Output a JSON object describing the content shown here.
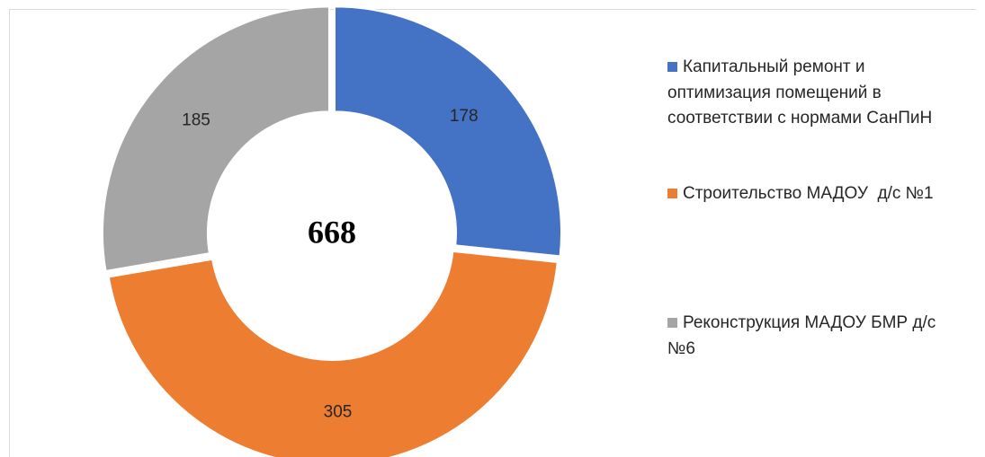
{
  "chart_data": {
    "type": "donut",
    "categories": [
      "Капитальный ремонт и оптимизация помещений в соответствии с нормами СанПиН",
      "Строительство МАДОУ  д/с №1",
      "Реконструкция МАДОУ БМР д/с №6"
    ],
    "values": [
      178,
      305,
      185
    ],
    "colors": [
      "#4472c4",
      "#ed7d31",
      "#a5a5a5"
    ],
    "center_label": 668,
    "legend": "right"
  }
}
